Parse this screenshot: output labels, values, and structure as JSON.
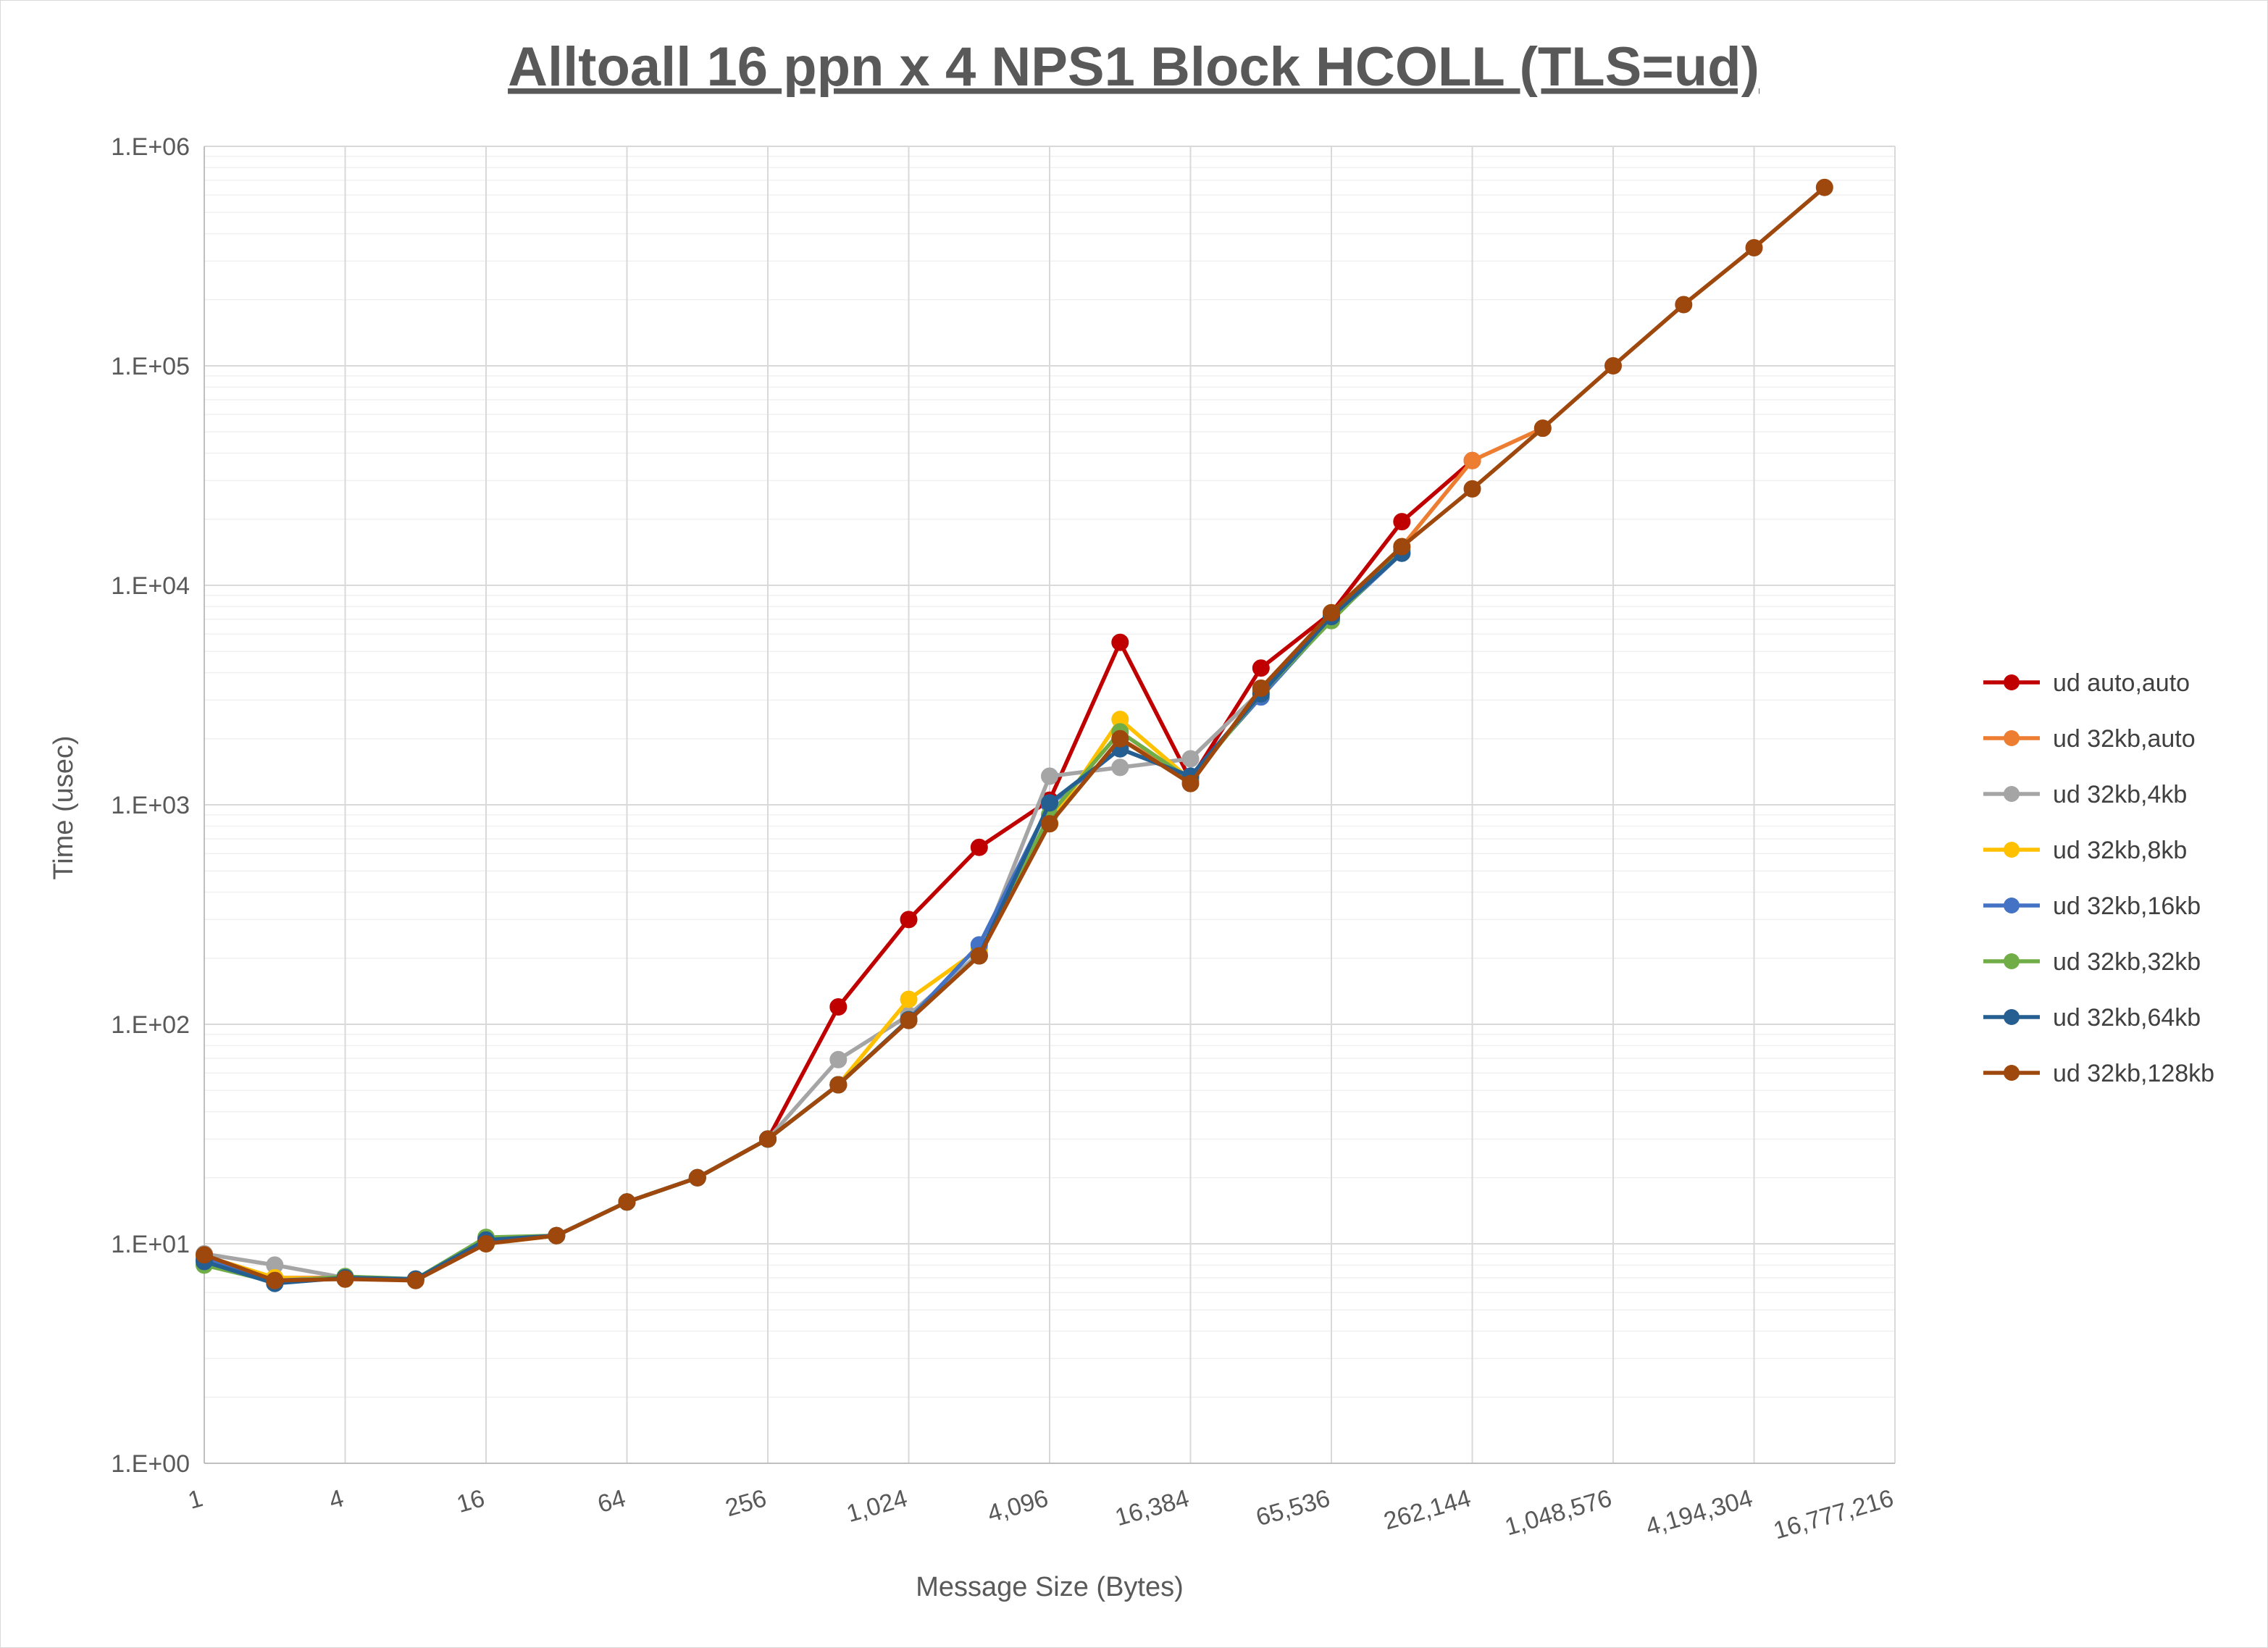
{
  "chart_data": {
    "type": "line",
    "title": "Alltoall 16 ppn x 4 NPS1 Block HCOLL (TLS=ud)",
    "xlabel": "Message Size (Bytes)",
    "ylabel": "Time (usec)",
    "x": [
      1,
      2,
      4,
      8,
      16,
      32,
      64,
      128,
      256,
      512,
      1024,
      2048,
      4096,
      8192,
      16384,
      32768,
      65536,
      131072,
      262144,
      524288,
      1048576,
      2097152,
      4194304,
      8388608
    ],
    "x_tick_labels": [
      "1",
      "4",
      "16",
      "64",
      "256",
      "1,024",
      "4,096",
      "16,384",
      "65,536",
      "262,144",
      "1,048,576",
      "4,194,304",
      "16,777,216"
    ],
    "x_tick_index": [
      0,
      2,
      4,
      6,
      8,
      10,
      12,
      14,
      16,
      18,
      20,
      22,
      24
    ],
    "y_tick_labels": [
      "1.E+00",
      "1.E+01",
      "1.E+02",
      "1.E+03",
      "1.E+04",
      "1.E+05",
      "1.E+06"
    ],
    "ylim": [
      1,
      1000000
    ],
    "yscale": "log",
    "legend_position": "right",
    "series": [
      {
        "name": "ud auto,auto",
        "color": "#C00000",
        "values": [
          8.5,
          6.8,
          7.0,
          6.9,
          10.2,
          10.9,
          15.5,
          20,
          30,
          120,
          300,
          640,
          1050,
          5500,
          1300,
          4200,
          7500,
          19500,
          37000,
          null,
          null,
          null,
          null,
          null
        ]
      },
      {
        "name": "ud 32kb,auto",
        "color": "#ED7D31",
        "values": [
          8.8,
          7.0,
          7.0,
          6.9,
          10.2,
          10.9,
          15.5,
          20,
          30,
          53,
          105,
          205,
          820,
          2000,
          1300,
          3300,
          7500,
          15000,
          37000,
          52000,
          null,
          null,
          null,
          null
        ]
      },
      {
        "name": "ud 32kb,4kb",
        "color": "#A5A5A5",
        "values": [
          9.0,
          8.0,
          7.0,
          6.9,
          10.2,
          10.9,
          15.5,
          20,
          30,
          69,
          110,
          210,
          1350,
          1480,
          1620,
          3300,
          7300,
          14500,
          null,
          null,
          null,
          null,
          null,
          null
        ]
      },
      {
        "name": "ud 32kb,8kb",
        "color": "#FFC000",
        "values": [
          8.8,
          7.0,
          6.9,
          6.9,
          10.0,
          10.9,
          15.5,
          20,
          30,
          53,
          130,
          220,
          820,
          2450,
          1300,
          3300,
          7500,
          15000,
          null,
          null,
          null,
          null,
          null,
          null
        ]
      },
      {
        "name": "ud 32kb,16kb",
        "color": "#4472C4",
        "values": [
          8.5,
          6.8,
          7.0,
          6.9,
          10.5,
          10.9,
          15.5,
          20,
          30,
          53,
          105,
          230,
          1000,
          1800,
          1350,
          3100,
          7000,
          14000,
          null,
          null,
          null,
          null,
          null,
          null
        ]
      },
      {
        "name": "ud 32kb,32kb",
        "color": "#70AD47",
        "values": [
          8.0,
          6.7,
          7.1,
          6.9,
          10.7,
          10.9,
          15.5,
          20,
          30,
          53,
          105,
          205,
          900,
          2150,
          1300,
          3200,
          6900,
          14500,
          null,
          null,
          null,
          null,
          null,
          null
        ]
      },
      {
        "name": "ud 32kb,64kb",
        "color": "#255E91",
        "values": [
          8.3,
          6.6,
          7.0,
          6.9,
          10.4,
          10.9,
          15.5,
          20,
          30,
          53,
          105,
          205,
          1020,
          1800,
          1350,
          3200,
          7200,
          14000,
          null,
          null,
          null,
          null,
          null,
          null
        ]
      },
      {
        "name": "ud 32kb,128kb",
        "color": "#9E480E",
        "values": [
          8.9,
          6.8,
          6.9,
          6.8,
          10.0,
          10.9,
          15.5,
          20,
          30,
          53,
          104,
          205,
          820,
          2000,
          1250,
          3400,
          7500,
          15000,
          27500,
          52000,
          100000,
          190000,
          345000,
          650000
        ]
      }
    ]
  }
}
